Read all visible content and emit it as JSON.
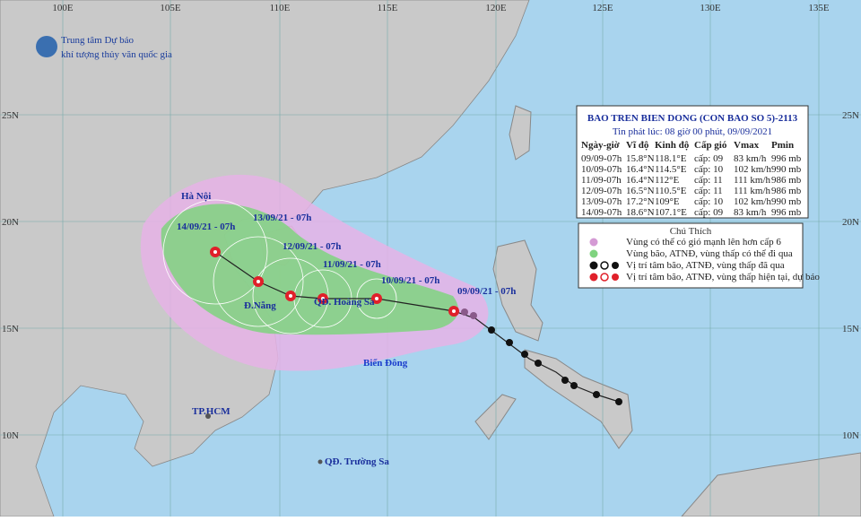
{
  "header": {
    "line1": "Trung tâm Dự báo",
    "line2": "khí tượng thủy văn quốc gia"
  },
  "grid": {
    "lon_labels": [
      "100E",
      "105E",
      "110E",
      "115E",
      "120E",
      "125E",
      "130E",
      "135E"
    ],
    "lat_labels": [
      "25N",
      "20N",
      "15N",
      "10N"
    ]
  },
  "info_box": {
    "title": "BAO TREN BIEN DONG (CON BAO SO 5)-2113",
    "issued": "Tin phát lúc: 08 giờ 00 phút, 09/09/2021",
    "columns": [
      "Ngày-giờ",
      "Vĩ độ",
      "Kinh độ",
      "Cấp gió",
      "Vmax",
      "Pmin"
    ],
    "rows": [
      [
        "09/09-07h",
        "15.8°N",
        "118.1°E",
        "cấp: 09",
        "83 km/h",
        "996 mb"
      ],
      [
        "10/09-07h",
        "16.4°N",
        "114.5°E",
        "cấp: 10",
        "102 km/h",
        "990 mb"
      ],
      [
        "11/09-07h",
        "16.4°N",
        "112°E",
        "cấp: 11",
        "111 km/h",
        "986 mb"
      ],
      [
        "12/09-07h",
        "16.5°N",
        "110.5°E",
        "cấp: 11",
        "111 km/h",
        "986 mb"
      ],
      [
        "13/09-07h",
        "17.2°N",
        "109°E",
        "cấp: 10",
        "102 km/h",
        "990 mb"
      ],
      [
        "14/09-07h",
        "18.6°N",
        "107.1°E",
        "cấp: 09",
        "83 km/h",
        "996 mb"
      ]
    ]
  },
  "legend": {
    "title": "Chú Thích",
    "items": [
      "Vùng có thể có gió mạnh lên hơn cấp 6",
      "Vùng bão, ATNĐ, vùng thấp có thể đi qua",
      "Vị trí tâm bão, ATNĐ, vùng thấp đã qua",
      "Vị trí tâm bão, ATNĐ, vùng thấp hiện tại, dự báo"
    ]
  },
  "map_labels": [
    "Hà Nội",
    "Đ.Nẵng",
    "QĐ. Hoàng Sa",
    "Biển Đông",
    "TP.HCM",
    "QĐ. Trường Sa"
  ],
  "forecast_labels": [
    "09/09/21 - 07h",
    "10/09/21 - 07h",
    "11/09/21 - 07h",
    "12/09/21 - 07h",
    "13/09/21 - 07h",
    "14/09/21 - 07h"
  ]
}
